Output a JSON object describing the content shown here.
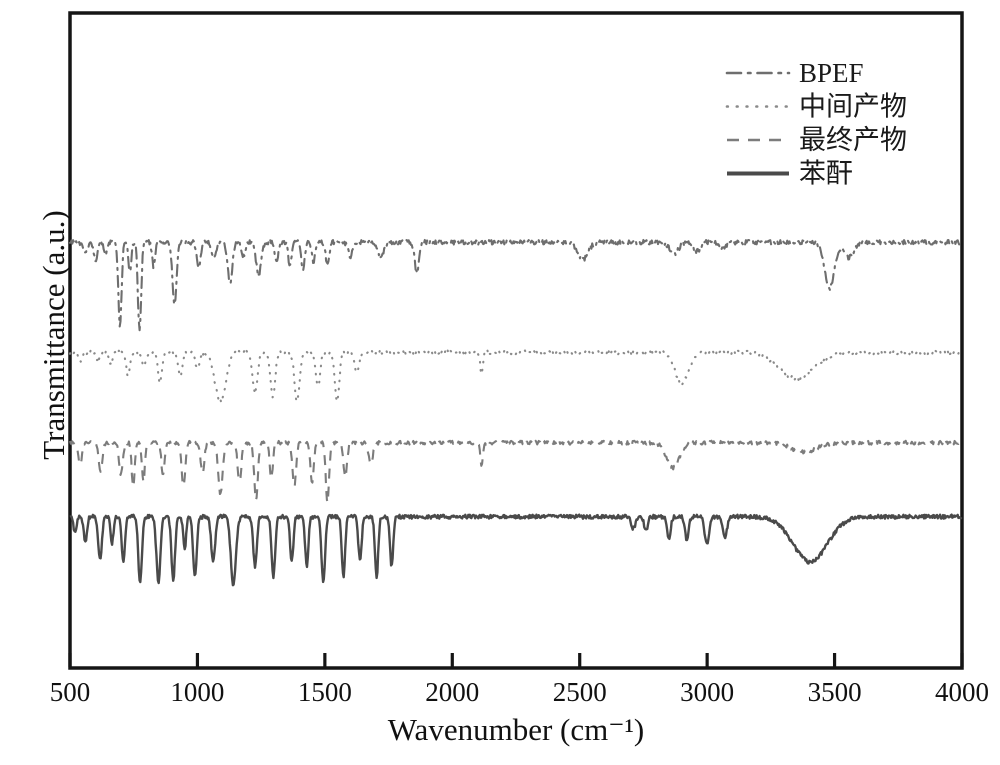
{
  "chart_data": {
    "type": "line",
    "title": "",
    "xlabel": "Wavenumber (cm⁻¹)",
    "ylabel": "Transmittance (a.u.)",
    "x_axis": {
      "min": 500,
      "max": 4000,
      "ticks": [
        500,
        1000,
        1500,
        2000,
        2500,
        3000,
        3500,
        4000
      ]
    },
    "y_axis": {
      "min": 0,
      "max": 100,
      "ticks": [],
      "note": "arbitrary units, no tick marks shown"
    },
    "grid": "off",
    "legend": {
      "position": "top-right",
      "entries": [
        "BPEF",
        "中间产物",
        "最终产物",
        "苯酐"
      ]
    },
    "bands_format": "[center_wavenumber_cm-1, dip_depth_au, gaussian_width_cm-1]; curve = baseline - sum(dips)",
    "series": [
      {
        "id": "bpef",
        "name": "BPEF",
        "style": "dashdot",
        "color": "#6e6e6e",
        "baseline": 65.0,
        "noise": 0.35,
        "bands": [
          [
            560,
            1.5,
            14
          ],
          [
            600,
            2.7,
            10
          ],
          [
            640,
            1.8,
            9
          ],
          [
            696,
            13.0,
            9
          ],
          [
            735,
            4.6,
            8
          ],
          [
            773,
            13.7,
            9
          ],
          [
            828,
            3.8,
            8
          ],
          [
            910,
            9.9,
            11
          ],
          [
            1005,
            4.3,
            10
          ],
          [
            1065,
            2.6,
            12
          ],
          [
            1128,
            6.1,
            13
          ],
          [
            1180,
            2.2,
            10
          ],
          [
            1240,
            5.0,
            14
          ],
          [
            1310,
            2.9,
            10
          ],
          [
            1363,
            3.7,
            9
          ],
          [
            1414,
            4.4,
            9
          ],
          [
            1455,
            3.0,
            9
          ],
          [
            1510,
            3.2,
            10
          ],
          [
            1600,
            2.2,
            12
          ],
          [
            1720,
            2.0,
            18
          ],
          [
            1861,
            4.6,
            12
          ],
          [
            2513,
            2.6,
            28
          ],
          [
            2870,
            1.7,
            25
          ],
          [
            2960,
            1.4,
            18
          ],
          [
            3060,
            1.1,
            18
          ],
          [
            3480,
            7.0,
            26
          ],
          [
            3555,
            2.3,
            30
          ]
        ]
      },
      {
        "id": "intermediate-product",
        "name": "中间产物",
        "style": "dotted",
        "color": "#8a8a8a",
        "baseline": 48.2,
        "noise": 0.3,
        "bands": [
          [
            540,
            1.2,
            12
          ],
          [
            610,
            1.5,
            10
          ],
          [
            660,
            1.8,
            10
          ],
          [
            728,
            3.8,
            10
          ],
          [
            790,
            2.3,
            10
          ],
          [
            853,
            4.6,
            11
          ],
          [
            932,
            3.8,
            11
          ],
          [
            1000,
            2.5,
            12
          ],
          [
            1090,
            7.6,
            30
          ],
          [
            1226,
            6.1,
            14
          ],
          [
            1296,
            6.9,
            13
          ],
          [
            1391,
            7.6,
            14
          ],
          [
            1473,
            5.3,
            12
          ],
          [
            1548,
            7.6,
            12
          ],
          [
            1625,
            3.1,
            12
          ],
          [
            2115,
            3.4,
            7
          ],
          [
            2900,
            4.6,
            38
          ],
          [
            3350,
            4.0,
            95
          ]
        ]
      },
      {
        "id": "final-product",
        "name": "最终产物",
        "style": "dashed",
        "color": "#7c7c7c",
        "baseline": 34.4,
        "noise": 0.3,
        "bands": [
          [
            540,
            3.4,
            10
          ],
          [
            620,
            4.3,
            10
          ],
          [
            700,
            4.9,
            10
          ],
          [
            748,
            6.9,
            8
          ],
          [
            788,
            6.1,
            8
          ],
          [
            865,
            4.9,
            9
          ],
          [
            945,
            6.9,
            10
          ],
          [
            1020,
            4.6,
            10
          ],
          [
            1090,
            7.9,
            12
          ],
          [
            1165,
            6.1,
            10
          ],
          [
            1230,
            8.9,
            10
          ],
          [
            1290,
            5.3,
            9
          ],
          [
            1380,
            6.9,
            10
          ],
          [
            1450,
            6.1,
            9
          ],
          [
            1510,
            9.2,
            9
          ],
          [
            1580,
            5.3,
            10
          ],
          [
            1680,
            3.1,
            12
          ],
          [
            2115,
            3.5,
            7
          ],
          [
            2866,
            3.8,
            35
          ],
          [
            3380,
            1.4,
            70
          ]
        ]
      },
      {
        "id": "phthalic-anhydride",
        "name": "苯酐",
        "style": "solid",
        "color": "#4a4a4a",
        "baseline": 23.1,
        "noise": 0.3,
        "bands": [
          [
            520,
            2.3,
            9
          ],
          [
            560,
            3.8,
            9
          ],
          [
            618,
            6.6,
            10
          ],
          [
            665,
            4.0,
            8
          ],
          [
            709,
            6.9,
            9
          ],
          [
            775,
            10.1,
            10
          ],
          [
            847,
            10.1,
            11
          ],
          [
            905,
            9.6,
            10
          ],
          [
            950,
            5.0,
            8
          ],
          [
            990,
            9.2,
            10
          ],
          [
            1062,
            6.9,
            11
          ],
          [
            1141,
            10.5,
            14
          ],
          [
            1226,
            7.6,
            10
          ],
          [
            1298,
            9.2,
            10
          ],
          [
            1370,
            6.9,
            9
          ],
          [
            1429,
            7.6,
            9
          ],
          [
            1494,
            10.1,
            10
          ],
          [
            1573,
            9.2,
            9
          ],
          [
            1638,
            6.9,
            9
          ],
          [
            1703,
            9.2,
            9
          ],
          [
            1762,
            7.6,
            9
          ],
          [
            2710,
            1.8,
            12
          ],
          [
            2760,
            2.2,
            10
          ],
          [
            2850,
            3.2,
            10
          ],
          [
            2920,
            3.5,
            10
          ],
          [
            2999,
            4.3,
            12
          ],
          [
            3070,
            3.1,
            12
          ],
          [
            3404,
            6.9,
            95
          ]
        ]
      }
    ],
    "plot_style": {
      "border_color": "#151515",
      "background": "#ffffff",
      "tick_direction": "in"
    }
  }
}
